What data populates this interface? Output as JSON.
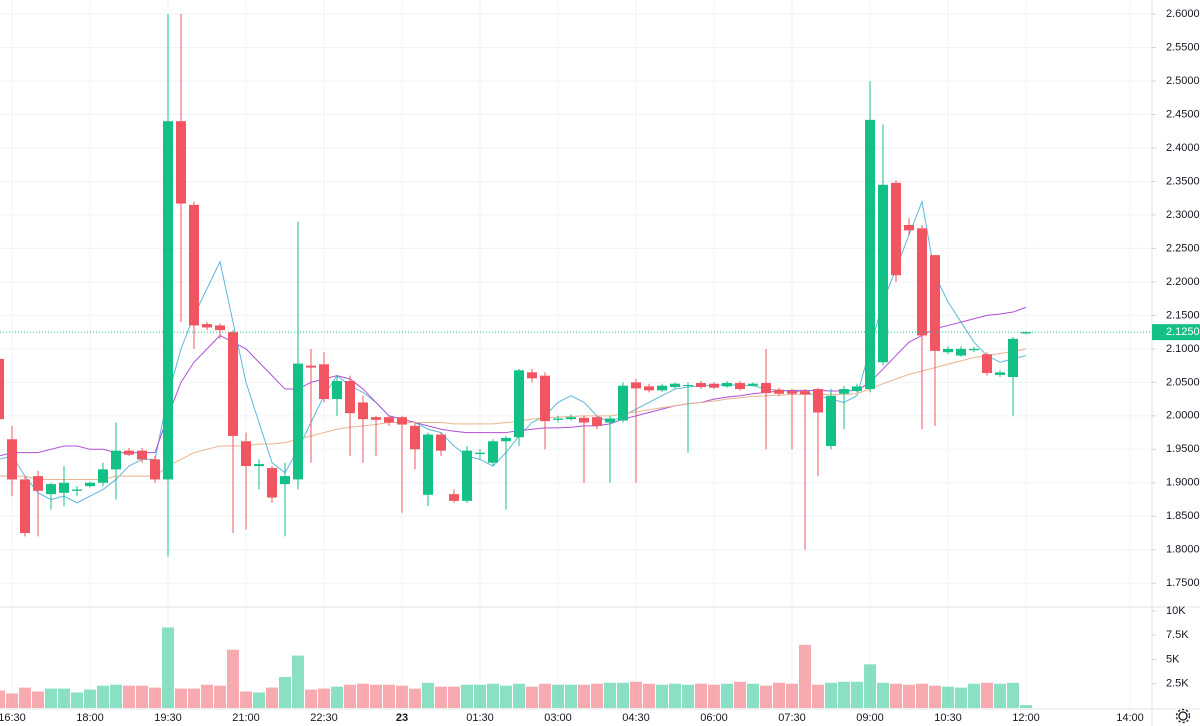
{
  "chart_data": {
    "type": "candlestick",
    "up_color": "#13c187",
    "down_color": "#f05561",
    "grid": true,
    "categories": [
      null,
      "16:30",
      null,
      null,
      null,
      null,
      null,
      "18:00",
      null,
      null,
      null,
      null,
      null,
      "19:30",
      null,
      null,
      null,
      null,
      null,
      "21:00",
      null,
      null,
      null,
      null,
      null,
      "22:30",
      null,
      null,
      null,
      null,
      null,
      "23",
      null,
      null,
      null,
      null,
      null,
      "01:30",
      null,
      null,
      null,
      null,
      null,
      "03:00",
      null,
      null,
      null,
      null,
      null,
      "04:30",
      null,
      null,
      null,
      null,
      null,
      "06:00",
      null,
      null,
      null,
      null,
      null,
      "07:30",
      null,
      null,
      null,
      null,
      null,
      "09:00",
      null,
      null,
      null,
      null,
      null,
      "10:30",
      null,
      null,
      null,
      null,
      null,
      "12:00",
      null,
      null,
      null,
      null,
      null,
      null,
      null,
      "14:00"
    ],
    "open": [
      2.085,
      1.965,
      1.905,
      1.91,
      1.883,
      1.885,
      1.888,
      1.895,
      1.9,
      1.92,
      1.948,
      1.948,
      1.935,
      1.905,
      2.44,
      2.315,
      2.137,
      2.135,
      2.125,
      1.962,
      1.925,
      1.922,
      1.898,
      1.905,
      2.075,
      2.077,
      2.025,
      2.052,
      2.02,
      1.998,
      1.998,
      1.998,
      1.985,
      1.882,
      1.972,
      1.883,
      1.873,
      1.943,
      1.93,
      1.962,
      1.968,
      2.065,
      2.06,
      1.994,
      1.995,
      1.997,
      1.998,
      1.99,
      1.993,
      2.05,
      2.044,
      2.038,
      2.043,
      2.045,
      2.049,
      2.048,
      2.044,
      2.049,
      2.045,
      2.049,
      2.039,
      2.037,
      2.037,
      2.04,
      1.955,
      2.033,
      2.037,
      2.04,
      2.08,
      2.348,
      2.285,
      2.28,
      2.24,
      2.095,
      2.09,
      2.098,
      2.092,
      2.061,
      2.058,
      2.123,
      null,
      null,
      null,
      null,
      null,
      null,
      null,
      null
    ],
    "high": [
      2.09,
      1.985,
      1.91,
      1.918,
      1.9,
      1.925,
      1.895,
      1.902,
      1.93,
      1.99,
      1.952,
      1.952,
      1.94,
      2.6,
      2.6,
      2.32,
      2.14,
      2.138,
      2.128,
      1.975,
      1.935,
      1.925,
      1.93,
      2.29,
      2.1,
      2.095,
      2.06,
      2.06,
      2.03,
      2.0,
      2.0,
      2.0,
      1.99,
      1.975,
      1.975,
      1.89,
      1.955,
      1.95,
      1.965,
      1.97,
      2.07,
      2.07,
      2.065,
      2.0,
      2.002,
      2.0,
      2.0,
      2.0,
      2.05,
      2.055,
      2.048,
      2.048,
      2.05,
      2.05,
      2.052,
      2.05,
      2.052,
      2.052,
      2.05,
      2.1,
      2.042,
      2.04,
      2.04,
      2.042,
      2.04,
      2.045,
      2.048,
      2.5,
      2.435,
      2.352,
      2.295,
      2.285,
      2.24,
      2.104,
      2.104,
      2.103,
      2.095,
      2.068,
      2.118,
      2.126,
      null,
      null,
      null,
      null,
      null,
      null,
      null,
      null
    ],
    "low": [
      1.99,
      1.88,
      1.82,
      1.82,
      1.86,
      1.865,
      1.88,
      1.893,
      1.895,
      1.875,
      1.94,
      1.93,
      1.9,
      1.79,
      2.14,
      2.1,
      2.128,
      2.115,
      1.825,
      1.83,
      1.89,
      1.87,
      1.82,
      1.89,
      1.93,
      2.02,
      2.0,
      1.94,
      1.93,
      1.94,
      1.985,
      1.855,
      1.92,
      1.865,
      1.94,
      1.87,
      1.87,
      1.935,
      1.925,
      1.86,
      1.955,
      2.05,
      1.95,
      1.99,
      1.993,
      1.9,
      1.98,
      1.9,
      1.99,
      1.9,
      2.035,
      2.036,
      2.04,
      1.945,
      2.04,
      2.04,
      2.042,
      2.038,
      2.044,
      1.95,
      2.03,
      1.95,
      1.8,
      1.91,
      1.95,
      1.98,
      2.035,
      2.035,
      2.075,
      2.2,
      2.27,
      1.98,
      1.985,
      2.092,
      2.088,
      2.095,
      2.06,
      2.058,
      2.0,
      2.122,
      null,
      null,
      null,
      null,
      null,
      null,
      null,
      null
    ],
    "close": [
      1.995,
      1.905,
      1.825,
      1.888,
      1.898,
      1.9,
      1.89,
      1.9,
      1.92,
      1.948,
      1.942,
      1.935,
      1.905,
      2.44,
      2.317,
      2.135,
      2.132,
      2.128,
      1.97,
      1.925,
      1.928,
      1.878,
      1.91,
      2.078,
      2.072,
      2.025,
      2.052,
      2.004,
      1.995,
      1.994,
      1.99,
      1.987,
      1.95,
      1.972,
      1.948,
      1.873,
      1.948,
      1.945,
      1.962,
      1.967,
      2.068,
      2.056,
      1.992,
      1.996,
      1.998,
      1.99,
      1.985,
      1.996,
      2.045,
      2.041,
      2.038,
      2.045,
      2.048,
      2.046,
      2.043,
      2.042,
      2.049,
      2.04,
      2.048,
      2.034,
      2.033,
      2.033,
      2.032,
      2.005,
      2.03,
      2.04,
      2.044,
      2.442,
      2.345,
      2.21,
      2.277,
      2.12,
      2.097,
      2.1,
      2.1,
      2.1,
      2.064,
      2.065,
      2.115,
      2.125,
      null,
      null,
      null,
      null,
      null,
      null,
      null,
      null
    ],
    "volume": [
      1800,
      1500,
      2100,
      1700,
      2000,
      2000,
      1600,
      1900,
      2300,
      2400,
      2300,
      2300,
      2100,
      8300,
      2000,
      2000,
      2400,
      2300,
      6000,
      1700,
      1600,
      2100,
      3200,
      5400,
      1900,
      2000,
      2200,
      2400,
      2500,
      2400,
      2400,
      2300,
      2000,
      2600,
      2200,
      2200,
      2400,
      2400,
      2500,
      2300,
      2500,
      2200,
      2500,
      2400,
      2400,
      2400,
      2500,
      2600,
      2600,
      2700,
      2500,
      2400,
      2500,
      2400,
      2500,
      2400,
      2500,
      2700,
      2500,
      2300,
      2600,
      2500,
      6500,
      2400,
      2600,
      2700,
      2700,
      4500,
      2600,
      2500,
      2400,
      2500,
      2300,
      2200,
      2100,
      2500,
      2600,
      2500,
      2600,
      300,
      null,
      null,
      null,
      null,
      null,
      null,
      null,
      null
    ],
    "lines": [
      {
        "color": "#5bb8d8",
        "values": [
          1.935,
          1.94,
          1.91,
          1.885,
          1.875,
          1.88,
          1.87,
          1.88,
          1.89,
          1.905,
          1.925,
          1.935,
          1.935,
          2.03,
          2.1,
          2.15,
          2.19,
          2.23,
          2.14,
          2.05,
          1.99,
          1.93,
          1.915,
          1.95,
          1.99,
          2.03,
          2.06,
          2.045,
          2.035,
          2.02,
          2.0,
          1.995,
          1.99,
          1.98,
          1.975,
          1.955,
          1.94,
          1.935,
          1.925,
          1.945,
          1.97,
          1.99,
          2.0,
          2.02,
          2.03,
          2.02,
          2.0,
          1.99,
          2.0,
          2.01,
          2.02,
          2.03,
          2.04,
          2.043,
          2.045,
          2.046,
          2.046,
          2.046,
          2.045,
          2.04,
          2.038,
          2.037,
          2.035,
          2.03,
          2.025,
          2.02,
          2.03,
          2.1,
          2.17,
          2.22,
          2.27,
          2.32,
          2.21,
          2.17,
          2.14,
          2.11,
          2.09,
          2.08,
          2.085,
          2.09,
          null,
          null,
          null,
          null,
          null,
          null,
          null,
          null
        ]
      },
      {
        "color": "#b04fd8",
        "values": [
          1.94,
          1.945,
          1.945,
          1.945,
          1.95,
          1.955,
          1.955,
          1.95,
          1.95,
          1.945,
          1.945,
          1.945,
          1.945,
          2.0,
          2.05,
          2.08,
          2.1,
          2.12,
          2.11,
          2.1,
          2.08,
          2.06,
          2.04,
          2.04,
          2.05,
          2.055,
          2.06,
          2.055,
          2.04,
          2.02,
          2.0,
          1.995,
          1.99,
          1.985,
          1.98,
          1.977,
          1.975,
          1.975,
          1.975,
          1.975,
          1.978,
          1.98,
          1.982,
          1.982,
          1.983,
          1.985,
          1.985,
          1.988,
          1.995,
          2.0,
          2.005,
          2.01,
          2.015,
          2.018,
          2.02,
          2.025,
          2.028,
          2.03,
          2.033,
          2.035,
          2.037,
          2.038,
          2.038,
          2.038,
          2.037,
          2.037,
          2.038,
          2.05,
          2.07,
          2.09,
          2.11,
          2.12,
          2.13,
          2.135,
          2.14,
          2.145,
          2.15,
          2.152,
          2.155,
          2.162,
          null,
          null,
          null,
          null,
          null,
          null,
          null,
          null
        ]
      },
      {
        "color": "#e8b48e",
        "values": [
          1.91,
          1.91,
          1.91,
          1.905,
          1.905,
          1.905,
          1.905,
          1.905,
          1.905,
          1.91,
          1.91,
          1.91,
          1.91,
          1.925,
          1.935,
          1.945,
          1.95,
          1.955,
          1.955,
          1.955,
          1.958,
          1.958,
          1.96,
          1.965,
          1.97,
          1.975,
          1.98,
          1.983,
          1.985,
          1.987,
          1.99,
          1.99,
          1.99,
          1.99,
          1.99,
          1.988,
          1.988,
          1.988,
          1.988,
          1.99,
          1.992,
          1.995,
          1.997,
          1.998,
          1.999,
          2.0,
          2.0,
          2.0,
          2.003,
          2.006,
          2.009,
          2.012,
          2.015,
          2.018,
          2.02,
          2.022,
          2.025,
          2.027,
          2.029,
          2.03,
          2.031,
          2.032,
          2.032,
          2.032,
          2.032,
          2.032,
          2.033,
          2.04,
          2.048,
          2.055,
          2.062,
          2.067,
          2.072,
          2.077,
          2.082,
          2.087,
          2.09,
          2.093,
          2.096,
          2.1,
          null,
          null,
          null,
          null,
          null,
          null,
          null,
          null
        ]
      }
    ],
    "ylim": [
      1.716,
      2.621
    ],
    "yticks": [
      {
        "value": 1.75,
        "label": "1.7500"
      },
      {
        "value": 1.8,
        "label": "1.8000"
      },
      {
        "value": 1.85,
        "label": "1.8500"
      },
      {
        "value": 1.9,
        "label": "1.9000"
      },
      {
        "value": 1.95,
        "label": "1.9500"
      },
      {
        "value": 2.0,
        "label": "2.0000"
      },
      {
        "value": 2.05,
        "label": "2.0500"
      },
      {
        "value": 2.1,
        "label": "2.1000"
      },
      {
        "value": 2.15,
        "label": "2.1500"
      },
      {
        "value": 2.2,
        "label": "2.2000"
      },
      {
        "value": 2.25,
        "label": "2.2500"
      },
      {
        "value": 2.3,
        "label": "2.3000"
      },
      {
        "value": 2.35,
        "label": "2.3500"
      },
      {
        "value": 2.4,
        "label": "2.4000"
      },
      {
        "value": 2.45,
        "label": "2.4500"
      },
      {
        "value": 2.5,
        "label": "2.5000"
      },
      {
        "value": 2.55,
        "label": "2.5500"
      },
      {
        "value": 2.6,
        "label": "2.6000"
      }
    ],
    "volume_ylim": [
      0,
      10300
    ],
    "volume_yticks": [
      {
        "value": 2500,
        "label": "2.5K"
      },
      {
        "value": 5000,
        "label": "5K"
      },
      {
        "value": 7500,
        "label": "7.5K"
      },
      {
        "value": 10000,
        "label": "10K"
      }
    ],
    "last_price": {
      "value": 2.125,
      "label": "2.1250"
    }
  }
}
